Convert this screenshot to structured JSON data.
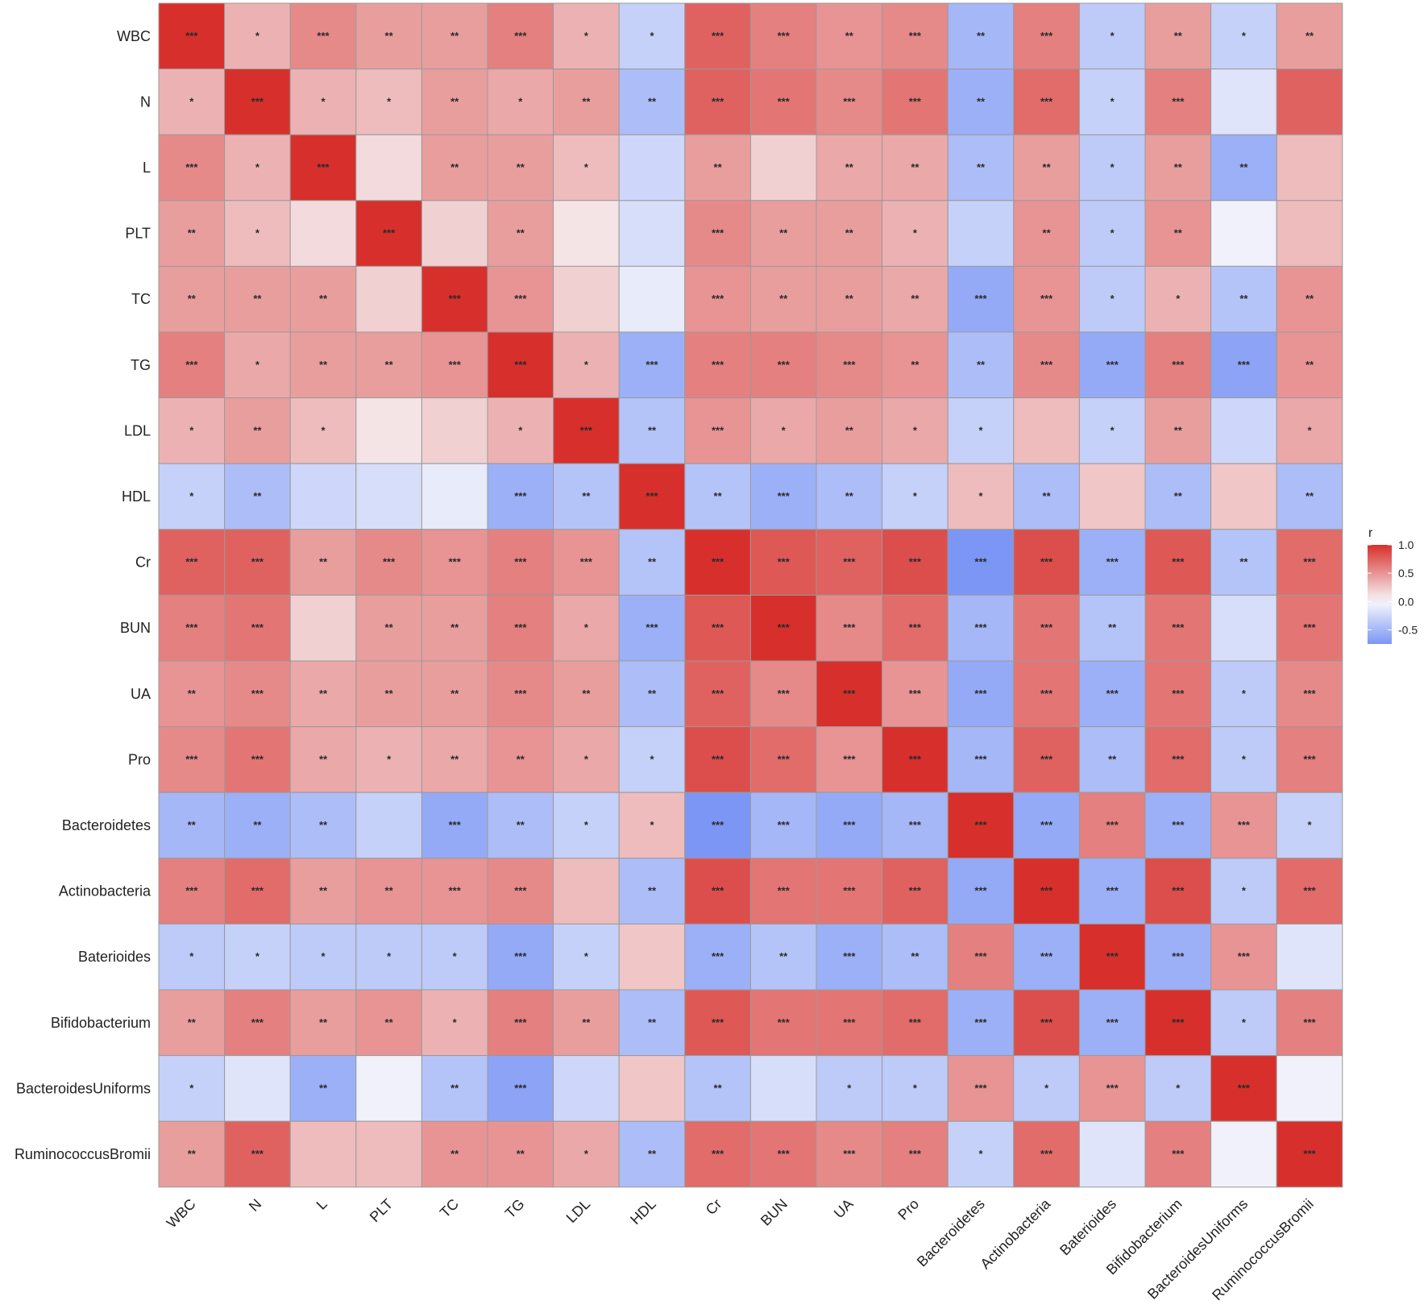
{
  "chart_data": {
    "type": "heatmap",
    "variables": [
      "WBC",
      "N",
      "L",
      "PLT",
      "TC",
      "TG",
      "LDL",
      "HDL",
      "Cr",
      "BUN",
      "UA",
      "Pro",
      "Bacteroidetes",
      "Actinobacteria",
      "Baterioides",
      "Bifidobacterium",
      "BacteroidesUniforms",
      "RuminococcusBromii"
    ],
    "values": [
      [
        1.0,
        0.35,
        0.55,
        0.45,
        0.45,
        0.6,
        0.35,
        -0.3,
        0.75,
        0.6,
        0.5,
        0.55,
        -0.5,
        0.6,
        -0.35,
        0.45,
        -0.3,
        0.45
      ],
      [
        0.35,
        1.0,
        0.35,
        0.3,
        0.45,
        0.4,
        0.45,
        -0.45,
        0.75,
        0.65,
        0.55,
        0.65,
        -0.55,
        0.7,
        -0.3,
        0.6,
        -0.15,
        0.75
      ],
      [
        0.55,
        0.35,
        1.0,
        0.15,
        0.45,
        0.45,
        0.3,
        -0.25,
        0.45,
        0.2,
        0.4,
        0.4,
        -0.45,
        0.45,
        -0.35,
        0.45,
        -0.55,
        0.3
      ],
      [
        0.45,
        0.3,
        0.15,
        1.0,
        0.2,
        0.45,
        0.1,
        -0.2,
        0.55,
        0.45,
        0.45,
        0.35,
        -0.3,
        0.5,
        -0.35,
        0.5,
        -0.05,
        0.3
      ],
      [
        0.45,
        0.45,
        0.45,
        0.2,
        1.0,
        0.5,
        0.2,
        -0.1,
        0.5,
        0.45,
        0.45,
        0.4,
        -0.6,
        0.5,
        -0.35,
        0.35,
        -0.4,
        0.5
      ],
      [
        0.6,
        0.4,
        0.45,
        0.45,
        0.5,
        1.0,
        0.35,
        -0.55,
        0.6,
        0.6,
        0.55,
        0.5,
        -0.45,
        0.55,
        -0.6,
        0.6,
        -0.65,
        0.5
      ],
      [
        0.35,
        0.45,
        0.3,
        0.1,
        0.2,
        0.35,
        1.0,
        -0.4,
        0.5,
        0.4,
        0.45,
        0.4,
        -0.3,
        0.3,
        -0.3,
        0.45,
        -0.25,
        0.4
      ],
      [
        -0.3,
        -0.45,
        -0.25,
        -0.2,
        -0.1,
        -0.55,
        -0.4,
        1.0,
        -0.4,
        -0.55,
        -0.45,
        -0.3,
        0.3,
        -0.45,
        0.25,
        -0.45,
        0.25,
        -0.45
      ],
      [
        0.75,
        0.75,
        0.45,
        0.55,
        0.5,
        0.6,
        0.5,
        -0.4,
        1.0,
        0.8,
        0.75,
        0.85,
        -0.75,
        0.85,
        -0.55,
        0.8,
        -0.4,
        0.7
      ],
      [
        0.6,
        0.65,
        0.2,
        0.45,
        0.45,
        0.6,
        0.4,
        -0.55,
        0.8,
        1.0,
        0.55,
        0.7,
        -0.5,
        0.65,
        -0.4,
        0.65,
        -0.2,
        0.65
      ],
      [
        0.5,
        0.55,
        0.4,
        0.45,
        0.45,
        0.55,
        0.45,
        -0.45,
        0.75,
        0.55,
        1.0,
        0.5,
        -0.6,
        0.65,
        -0.55,
        0.65,
        -0.35,
        0.55
      ],
      [
        0.55,
        0.65,
        0.4,
        0.35,
        0.4,
        0.5,
        0.4,
        -0.3,
        0.85,
        0.7,
        0.5,
        1.0,
        -0.5,
        0.75,
        -0.45,
        0.7,
        -0.35,
        0.6
      ],
      [
        -0.5,
        -0.55,
        -0.45,
        -0.3,
        -0.6,
        -0.45,
        -0.3,
        0.3,
        -0.75,
        -0.5,
        -0.6,
        -0.5,
        1.0,
        -0.6,
        0.6,
        -0.55,
        0.5,
        -0.3
      ],
      [
        0.6,
        0.7,
        0.45,
        0.5,
        0.5,
        0.55,
        0.3,
        -0.45,
        0.85,
        0.65,
        0.65,
        0.75,
        -0.6,
        1.0,
        -0.55,
        0.85,
        -0.35,
        0.7
      ],
      [
        -0.35,
        -0.3,
        -0.35,
        -0.35,
        -0.35,
        -0.6,
        -0.3,
        0.25,
        -0.55,
        -0.4,
        -0.55,
        -0.45,
        0.6,
        -0.55,
        1.0,
        -0.55,
        0.5,
        -0.15
      ],
      [
        0.45,
        0.6,
        0.45,
        0.5,
        0.35,
        0.6,
        0.45,
        -0.45,
        0.8,
        0.65,
        0.65,
        0.7,
        -0.55,
        0.85,
        -0.55,
        1.0,
        -0.35,
        0.6
      ],
      [
        -0.3,
        -0.15,
        -0.55,
        -0.05,
        -0.4,
        -0.65,
        -0.25,
        0.25,
        -0.4,
        -0.2,
        -0.35,
        -0.35,
        0.5,
        -0.35,
        0.5,
        -0.35,
        1.0,
        -0.05
      ],
      [
        0.45,
        0.75,
        0.3,
        0.3,
        0.5,
        0.5,
        0.4,
        -0.45,
        0.7,
        0.65,
        0.55,
        0.6,
        -0.3,
        0.7,
        -0.15,
        0.6,
        -0.05,
        1.0
      ]
    ],
    "significance": [
      [
        "***",
        "*",
        "***",
        "**",
        "**",
        "***",
        "*",
        "*",
        "***",
        "***",
        "**",
        "***",
        "**",
        "***",
        "*",
        "**",
        "*",
        "**"
      ],
      [
        "*",
        "***",
        "*",
        "*",
        "**",
        "*",
        "**",
        "**",
        "***",
        "***",
        "***",
        "***",
        "**",
        "***",
        "*",
        "***",
        "",
        ""
      ],
      [
        "***",
        "*",
        "***",
        "",
        "**",
        "**",
        "*",
        "",
        "**",
        "",
        "**",
        "**",
        "**",
        "**",
        "*",
        "**",
        "**",
        ""
      ],
      [
        "**",
        "*",
        "",
        "***",
        "",
        "**",
        "",
        "",
        "***",
        "**",
        "**",
        "*",
        "",
        "**",
        "*",
        "**",
        "",
        ""
      ],
      [
        "**",
        "**",
        "**",
        "",
        "***",
        "***",
        "",
        "",
        "***",
        "**",
        "**",
        "**",
        "***",
        "***",
        "*",
        "*",
        "**",
        "**"
      ],
      [
        "***",
        "*",
        "**",
        "**",
        "***",
        "***",
        "*",
        "***",
        "***",
        "***",
        "***",
        "**",
        "**",
        "***",
        "***",
        "***",
        "***",
        "**"
      ],
      [
        "*",
        "**",
        "*",
        "",
        "",
        "*",
        "***",
        "**",
        "***",
        "*",
        "**",
        "*",
        "*",
        "",
        "*",
        "**",
        "",
        "*"
      ],
      [
        "*",
        "**",
        "",
        "",
        "",
        "***",
        "**",
        "***",
        "**",
        "***",
        "**",
        "*",
        "*",
        "**",
        "",
        "**",
        "",
        "**"
      ],
      [
        "***",
        "***",
        "**",
        "***",
        "***",
        "***",
        "***",
        "**",
        "***",
        "***",
        "***",
        "***",
        "***",
        "***",
        "***",
        "***",
        "**",
        "***"
      ],
      [
        "***",
        "***",
        "",
        "**",
        "**",
        "***",
        "*",
        "***",
        "***",
        "***",
        "***",
        "***",
        "***",
        "***",
        "**",
        "***",
        "",
        "***"
      ],
      [
        "**",
        "***",
        "**",
        "**",
        "**",
        "***",
        "**",
        "**",
        "***",
        "***",
        "***",
        "***",
        "***",
        "***",
        "***",
        "***",
        "*",
        "***"
      ],
      [
        "***",
        "***",
        "**",
        "*",
        "**",
        "**",
        "*",
        "*",
        "***",
        "***",
        "***",
        "***",
        "***",
        "***",
        "**",
        "***",
        "*",
        "***"
      ],
      [
        "**",
        "**",
        "**",
        "",
        "***",
        "**",
        "*",
        "*",
        "***",
        "***",
        "***",
        "***",
        "***",
        "***",
        "***",
        "***",
        "***",
        "*"
      ],
      [
        "***",
        "***",
        "**",
        "**",
        "***",
        "***",
        "",
        "**",
        "***",
        "***",
        "***",
        "***",
        "***",
        "***",
        "***",
        "***",
        "*",
        "***"
      ],
      [
        "*",
        "*",
        "*",
        "*",
        "*",
        "***",
        "*",
        "",
        "***",
        "**",
        "***",
        "**",
        "***",
        "***",
        "***",
        "***",
        "***",
        ""
      ],
      [
        "**",
        "***",
        "**",
        "**",
        "*",
        "***",
        "**",
        "**",
        "***",
        "***",
        "***",
        "***",
        "***",
        "***",
        "***",
        "***",
        "*",
        "***"
      ],
      [
        "*",
        "",
        "**",
        "",
        "**",
        "***",
        "",
        "",
        "**",
        "",
        "*",
        "*",
        "***",
        "*",
        "***",
        "*",
        "***",
        ""
      ],
      [
        "**",
        "***",
        "",
        "",
        "**",
        "**",
        "*",
        "**",
        "***",
        "***",
        "***",
        "***",
        "*",
        "***",
        "",
        "***",
        "",
        "***"
      ]
    ],
    "color_scale": {
      "title": "r",
      "min": -0.75,
      "max": 1.0,
      "low_color": "#7b96f5",
      "mid_color": "#f8f8fb",
      "high_color": "#d7302c",
      "ticks": [
        "1.0",
        "0.5",
        "0.0",
        "-0.5"
      ]
    },
    "legend_placement": "right",
    "grid": true
  }
}
